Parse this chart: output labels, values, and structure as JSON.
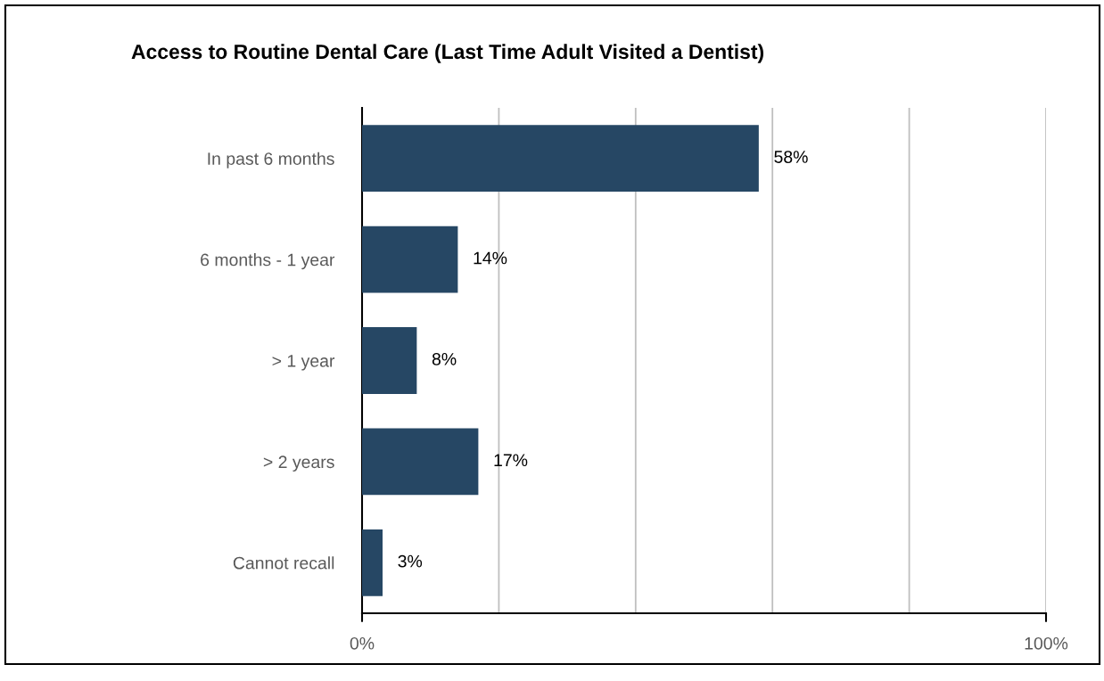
{
  "chart_data": {
    "type": "bar",
    "orientation": "horizontal",
    "title": "Access to Routine Dental Care (Last Time Adult Visited a Dentist)",
    "categories": [
      "In past 6 months",
      "6 months - 1 year",
      "> 1 year",
      "> 2 years",
      "Cannot recall"
    ],
    "values": [
      58,
      14,
      8,
      17,
      3
    ],
    "value_labels": [
      "58%",
      "14%",
      "8%",
      "17%",
      "3%"
    ],
    "color": "#264764",
    "xlim": [
      0,
      100
    ],
    "xticks": [
      {
        "value": 0,
        "label": "0%"
      },
      {
        "value": 20,
        "label": null
      },
      {
        "value": 40,
        "label": null
      },
      {
        "value": 60,
        "label": null
      },
      {
        "value": 80,
        "label": null
      },
      {
        "value": 100,
        "label": "100%"
      }
    ],
    "grid": "x",
    "legend": false
  }
}
